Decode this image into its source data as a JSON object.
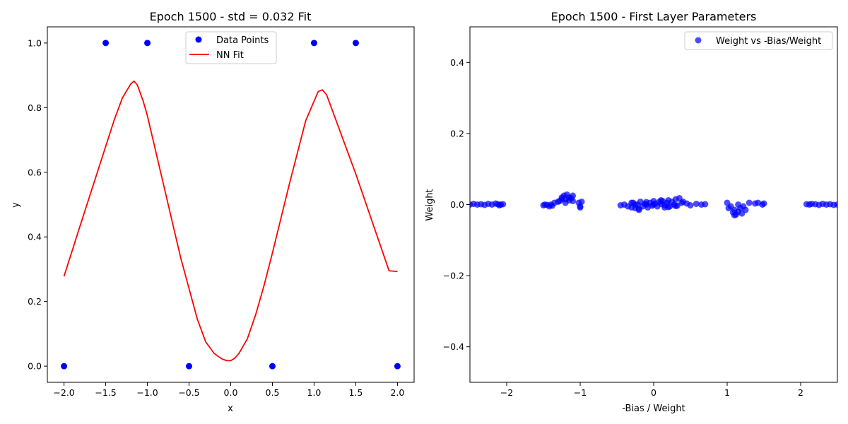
{
  "chart_data": [
    {
      "type": "line",
      "title": "Epoch 1500 - std = 0.032 Fit",
      "xlabel": "x",
      "ylabel": "y",
      "xlim": [
        -2.2,
        2.2
      ],
      "ylim": [
        -0.05,
        1.05
      ],
      "xticks": [
        -2.0,
        -1.5,
        -1.0,
        -0.5,
        0.0,
        0.5,
        1.0,
        1.5,
        2.0
      ],
      "xtick_labels": [
        "−2.0",
        "−1.5",
        "−1.0",
        "−0.5",
        "0.0",
        "0.5",
        "1.0",
        "1.5",
        "2.0"
      ],
      "yticks": [
        0.0,
        0.2,
        0.4,
        0.6,
        0.8,
        1.0
      ],
      "ytick_labels": [
        "0.0",
        "0.2",
        "0.4",
        "0.6",
        "0.8",
        "1.0"
      ],
      "legend_position": "top-center",
      "series": [
        {
          "name": "Data Points",
          "kind": "scatter",
          "color": "#0000ff",
          "x": [
            -2.0,
            -1.5,
            -1.0,
            -0.5,
            0.5,
            1.0,
            1.5,
            2.0
          ],
          "y": [
            0,
            1,
            1,
            0,
            0,
            1,
            1,
            0
          ]
        },
        {
          "name": "NN Fit",
          "kind": "line",
          "color": "#ff0000",
          "x": [
            -2.0,
            -1.8,
            -1.6,
            -1.4,
            -1.3,
            -1.2,
            -1.16,
            -1.12,
            -1.05,
            -1.0,
            -0.9,
            -0.8,
            -0.7,
            -0.6,
            -0.5,
            -0.4,
            -0.3,
            -0.2,
            -0.15,
            -0.1,
            -0.05,
            0.0,
            0.05,
            0.1,
            0.2,
            0.3,
            0.4,
            0.5,
            0.6,
            0.7,
            0.8,
            0.9,
            1.0,
            1.05,
            1.1,
            1.15,
            1.2,
            1.3,
            1.4,
            1.5,
            1.6,
            1.7,
            1.8,
            1.9,
            2.0
          ],
          "y": [
            0.278,
            0.44,
            0.6,
            0.76,
            0.83,
            0.873,
            0.882,
            0.87,
            0.82,
            0.775,
            0.665,
            0.555,
            0.445,
            0.335,
            0.24,
            0.145,
            0.075,
            0.04,
            0.03,
            0.022,
            0.017,
            0.017,
            0.025,
            0.04,
            0.085,
            0.16,
            0.25,
            0.35,
            0.455,
            0.56,
            0.66,
            0.76,
            0.82,
            0.85,
            0.855,
            0.84,
            0.805,
            0.735,
            0.665,
            0.595,
            0.52,
            0.445,
            0.37,
            0.295,
            0.293
          ]
        }
      ]
    },
    {
      "type": "scatter",
      "title": "Epoch 1500 - First Layer Parameters",
      "xlabel": "-Bias / Weight",
      "ylabel": "Weight",
      "xlim": [
        -2.5,
        2.5
      ],
      "ylim": [
        -0.5,
        0.5
      ],
      "xticks": [
        -2,
        -1,
        0,
        1,
        2
      ],
      "xtick_labels": [
        "−2",
        "−1",
        "0",
        "1",
        "2"
      ],
      "yticks": [
        -0.4,
        -0.2,
        0.0,
        0.2,
        0.4
      ],
      "ytick_labels": [
        "−0.4",
        "−0.2",
        "0.0",
        "0.2",
        "0.4"
      ],
      "legend_position": "top-right",
      "series": [
        {
          "name": "Weight vs -Bias/Weight",
          "color": "#0000ff",
          "alpha": 0.7,
          "x": [
            -2.5,
            -2.45,
            -2.4,
            -2.35,
            -2.3,
            -2.25,
            -2.2,
            -2.15,
            -2.12,
            -2.1,
            -2.08,
            -2.05,
            -1.5,
            -1.48,
            -1.45,
            -1.42,
            -1.4,
            -1.38,
            -1.35,
            -1.3,
            -1.28,
            -1.25,
            -1.22,
            -1.2,
            -1.18,
            -1.15,
            -1.12,
            -1.1,
            -1.2,
            -1.15,
            -1.25,
            -1.1,
            -1.02,
            -1.0,
            -0.98,
            -1.0,
            -0.45,
            -0.4,
            -0.35,
            -0.3,
            -0.28,
            -0.25,
            -0.22,
            -0.2,
            -0.18,
            -0.15,
            -0.12,
            -0.1,
            -0.08,
            -0.05,
            -0.02,
            0.0,
            0.02,
            0.05,
            0.08,
            0.1,
            0.12,
            0.15,
            0.18,
            0.2,
            0.22,
            0.25,
            0.28,
            0.3,
            0.32,
            0.35,
            0.38,
            0.4,
            0.45,
            0.5,
            0.58,
            0.65,
            0.7,
            -0.3,
            -0.2,
            -0.1,
            0.1,
            0.2,
            0.3,
            -0.25,
            0.0,
            0.15,
            1.0,
            1.02,
            1.05,
            1.08,
            1.1,
            1.12,
            1.15,
            1.18,
            1.2,
            1.22,
            1.25,
            1.1,
            1.15,
            1.3,
            1.38,
            1.42,
            1.48,
            1.5,
            2.08,
            2.12,
            2.15,
            2.2,
            2.25,
            2.3,
            2.35,
            2.4,
            2.45,
            2.5
          ],
          "y": [
            0.0,
            0.002,
            0.0,
            0.001,
            -0.001,
            0.002,
            0.0,
            0.003,
            0.001,
            -0.002,
            0.0,
            0.001,
            -0.002,
            0.0,
            -0.001,
            -0.005,
            0.0,
            -0.003,
            0.005,
            0.008,
            0.01,
            0.02,
            0.025,
            0.015,
            0.028,
            0.02,
            0.018,
            0.025,
            0.005,
            0.012,
            0.015,
            0.01,
            0.005,
            -0.005,
            0.008,
            -0.008,
            -0.002,
            0.0,
            -0.005,
            -0.008,
            0.005,
            -0.01,
            0.0,
            -0.015,
            0.008,
            -0.005,
            0.002,
            0.0,
            -0.008,
            0.005,
            -0.003,
            0.0,
            0.003,
            -0.005,
            0.008,
            0.002,
            0.01,
            -0.002,
            0.005,
            0.012,
            -0.005,
            0.008,
            0.0,
            0.015,
            -0.003,
            0.018,
            0.005,
            0.008,
            0.003,
            -0.002,
            0.002,
            0.0,
            0.001,
            0.005,
            -0.012,
            0.007,
            0.012,
            -0.007,
            -0.004,
            0.0,
            0.01,
            -0.008,
            0.005,
            -0.01,
            -0.005,
            -0.022,
            -0.015,
            -0.028,
            -0.02,
            -0.01,
            -0.025,
            -0.005,
            -0.015,
            -0.03,
            0.0,
            0.005,
            0.003,
            0.005,
            0.0,
            0.003,
            0.001,
            0.0,
            0.002,
            0.001,
            -0.001,
            0.002,
            0.0,
            0.001,
            -0.001,
            0.0
          ]
        }
      ]
    }
  ]
}
